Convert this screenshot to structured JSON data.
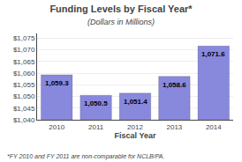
{
  "chart_data": {
    "type": "bar",
    "title": "Funding Levels by Fiscal Year*",
    "subtitle": "(Dollars in Millions)",
    "xlabel": "Fiscal Year",
    "annotations": [
      "*FY 2010 and FY 2011 are non-comparable for NCLB/PA."
    ],
    "categories": [
      "2010",
      "2011",
      "2012",
      "2013",
      "2014"
    ],
    "values": [
      1059.3,
      1050.5,
      1051.4,
      1058.6,
      1071.6
    ],
    "value_labels": [
      "1,059.3",
      "1,050.5",
      "1,051.4",
      "1,058.6",
      "1,071.6"
    ],
    "data_labels": true,
    "color": "#8888dd",
    "ylim": [
      1040,
      1077
    ],
    "yticks": [
      {
        "value": 1040,
        "label": "$1,040"
      },
      {
        "value": 1045,
        "label": "$1,045"
      },
      {
        "value": 1050,
        "label": "$1,050"
      },
      {
        "value": 1055,
        "label": "$1,055"
      },
      {
        "value": 1060,
        "label": "$1,060"
      },
      {
        "value": 1065,
        "label": "$1,065"
      },
      {
        "value": 1070,
        "label": "$1,070"
      },
      {
        "value": 1075,
        "label": "$1,075"
      }
    ],
    "grid": true
  }
}
